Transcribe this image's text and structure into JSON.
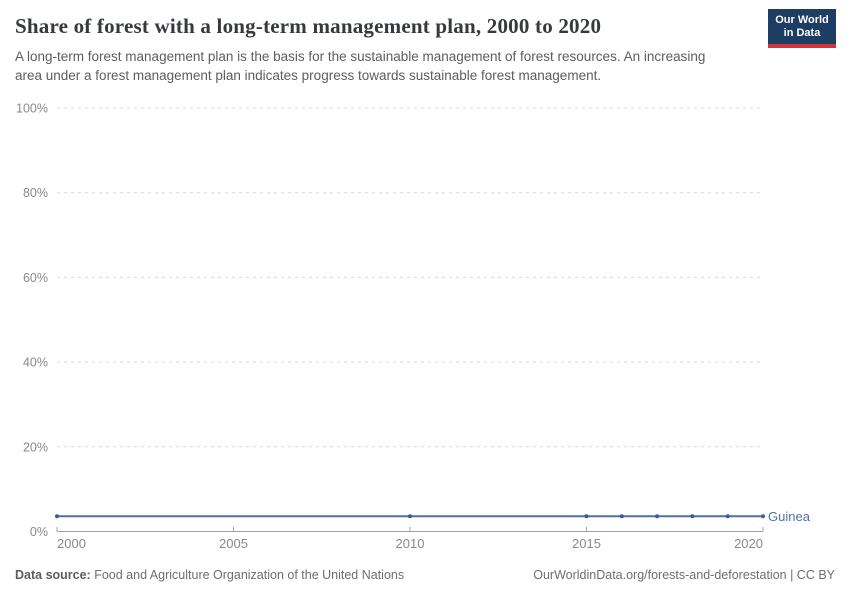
{
  "header": {
    "title": "Share of forest with a long-term management plan, 2000 to 2020",
    "subtitle": "A long-term forest management plan is the basis for the sustainable management of forest resources. An increasing area under a forest management plan indicates progress towards sustainable forest management.",
    "logo": {
      "line1": "Our World",
      "line2": "in Data",
      "background_color": "#1d3d63",
      "accent_color": "#d1353b"
    }
  },
  "chart_data": {
    "type": "line",
    "title": "Share of forest with a long-term management plan, 2000 to 2020",
    "xlabel": "",
    "ylabel": "",
    "xlim": [
      2000,
      2020
    ],
    "ylim": [
      0,
      100
    ],
    "x_ticks": [
      2000,
      2005,
      2010,
      2015,
      2020
    ],
    "y_ticks": [
      0,
      20,
      40,
      60,
      80,
      100
    ],
    "y_tick_suffix": "%",
    "grid": "horizontal-dashed",
    "legend_position": "end-of-line-label",
    "series": [
      {
        "name": "Guinea",
        "color": "#4e71ad",
        "marker_color": "#3b5c9c",
        "x": [
          2000,
          2010,
          2015,
          2016,
          2017,
          2018,
          2019,
          2020
        ],
        "values": [
          3.6,
          3.6,
          3.6,
          3.6,
          3.6,
          3.6,
          3.6,
          3.6
        ]
      }
    ]
  },
  "footer": {
    "source_label": "Data source:",
    "source_text": " Food and Agriculture Organization of the United Nations",
    "attribution": "OurWorldinData.org/forests-and-deforestation | CC BY"
  }
}
